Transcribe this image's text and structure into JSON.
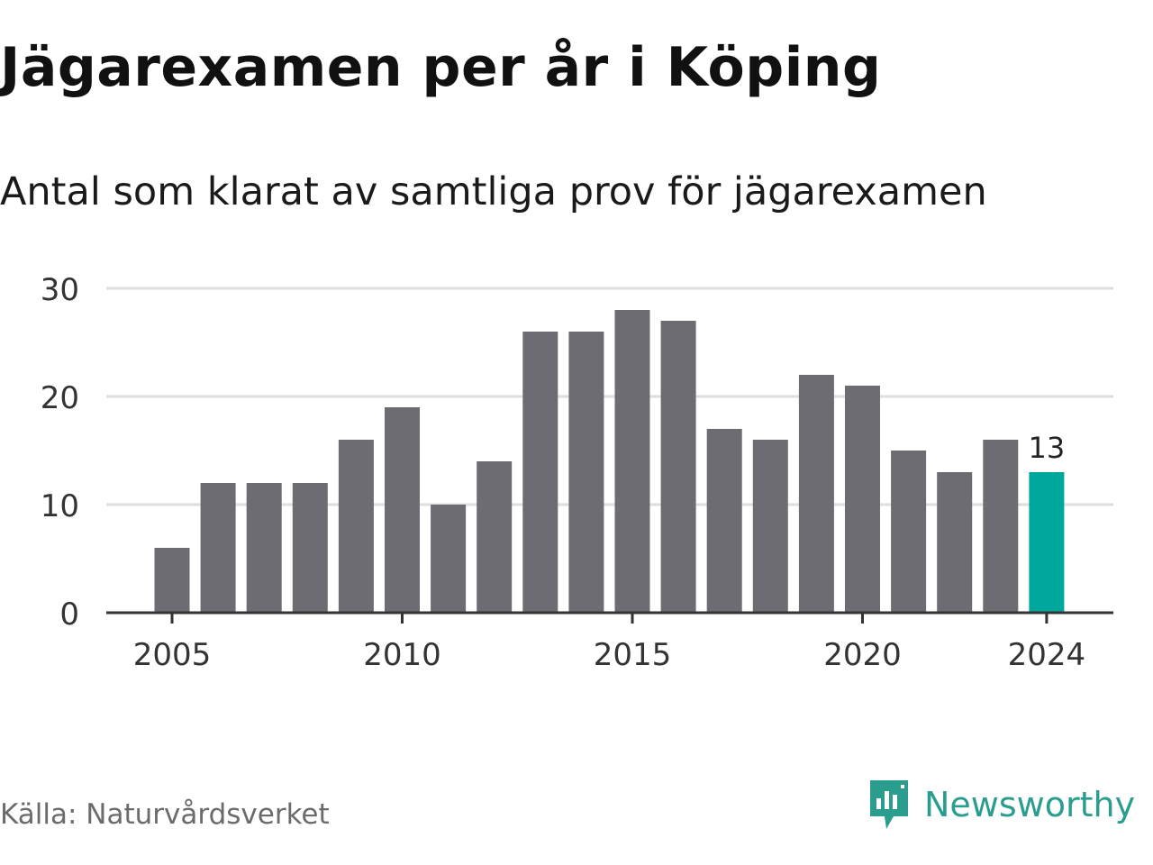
{
  "title": "Jägarexamen per år i Köping",
  "subtitle": "Antal som klarat av samtliga prov för jägarexamen",
  "source": "Källa: Naturvårdsverket",
  "brand": {
    "name": "Newsworthy",
    "icon": "newsworthy-logo-icon",
    "color": "#2a9d8f"
  },
  "colors": {
    "bar": "#6d6c72",
    "highlight": "#00a79d",
    "grid": "#dedede",
    "axis": "#333333",
    "tick_text": "#333333"
  },
  "chart_data": {
    "type": "bar",
    "categories": [
      "2005",
      "2006",
      "2007",
      "2008",
      "2009",
      "2010",
      "2011",
      "2012",
      "2013",
      "2014",
      "2015",
      "2016",
      "2017",
      "2018",
      "2019",
      "2020",
      "2021",
      "2022",
      "2023",
      "2024"
    ],
    "values": [
      6,
      12,
      12,
      12,
      16,
      19,
      10,
      14,
      26,
      26,
      28,
      27,
      17,
      16,
      22,
      21,
      15,
      13,
      16,
      13
    ],
    "highlight_index": 19,
    "data_labels": [
      {
        "index": 19,
        "text": "13"
      }
    ],
    "xticks": [
      "2005",
      "2010",
      "2015",
      "2020",
      "2024"
    ],
    "yticks": [
      0,
      10,
      20,
      30
    ],
    "ylim": [
      0,
      30
    ],
    "grid": true,
    "legend": "none"
  }
}
